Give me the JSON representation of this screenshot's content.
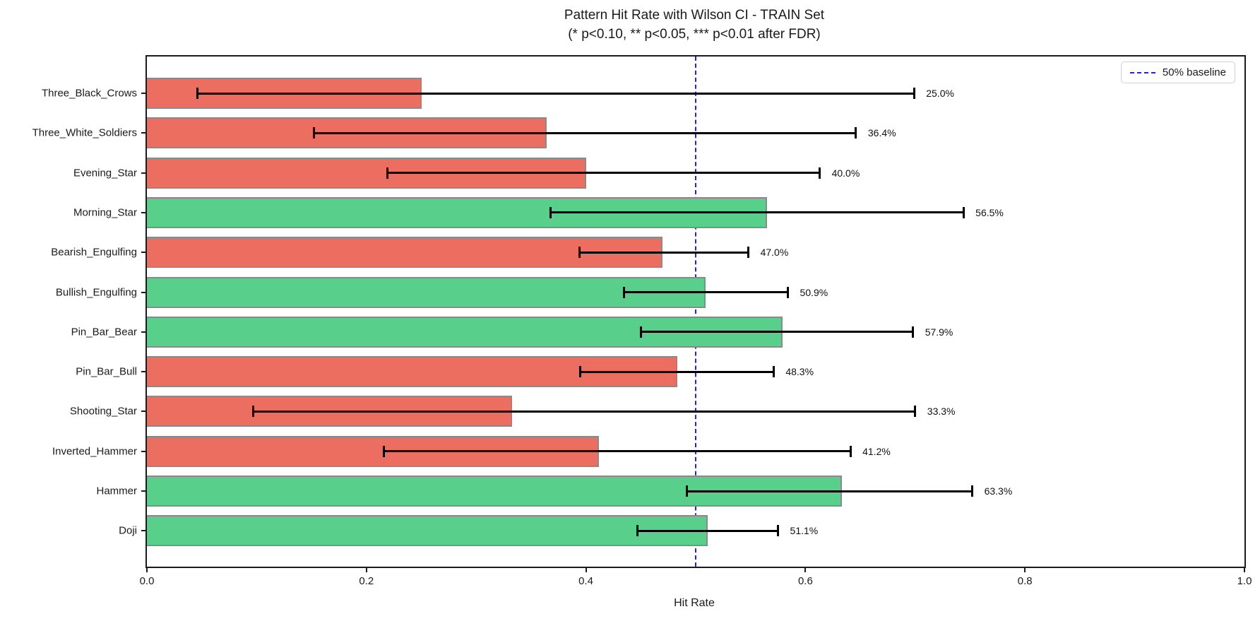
{
  "title": "Pattern Hit Rate with Wilson CI - TRAIN Set",
  "subtitle": "(* p<0.10, ** p<0.05, *** p<0.01 after FDR)",
  "xlabel": "Hit Rate",
  "legend": {
    "baseline_label": "50% baseline"
  },
  "colors": {
    "positive_bar": "#58d08b",
    "negative_bar": "#ec6e61",
    "bar_edge": "#8a8a8a",
    "error_bar": "#000000",
    "baseline_line": "#2323dd",
    "spine": "#1b1b1b"
  },
  "chart_data": {
    "type": "bar",
    "orientation": "horizontal",
    "title": "Pattern Hit Rate with Wilson CI - TRAIN Set",
    "subtitle": "(* p<0.10, ** p<0.05, *** p<0.01 after FDR)",
    "xlabel": "Hit Rate",
    "ylabel": "",
    "xlim": [
      0.0,
      1.0
    ],
    "x_tick_labels": [
      "0.0",
      "0.2",
      "0.4",
      "0.6",
      "0.8",
      "1.0"
    ],
    "grid": false,
    "legend_position": "upper right",
    "baseline_value": 0.5,
    "categories": [
      "Three_Black_Crows",
      "Three_White_Soldiers",
      "Evening_Star",
      "Morning_Star",
      "Bearish_Engulfing",
      "Bullish_Engulfing",
      "Pin_Bar_Bear",
      "Pin_Bar_Bull",
      "Shooting_Star",
      "Inverted_Hammer",
      "Hammer",
      "Doji"
    ],
    "values": [
      0.25,
      0.364,
      0.4,
      0.565,
      0.47,
      0.509,
      0.579,
      0.483,
      0.333,
      0.412,
      0.633,
      0.511
    ],
    "value_labels": [
      "25.0%",
      "36.4%",
      "40.0%",
      "56.5%",
      "47.0%",
      "50.9%",
      "57.9%",
      "48.3%",
      "33.3%",
      "41.2%",
      "63.3%",
      "51.1%"
    ],
    "ci_low": [
      0.046,
      0.152,
      0.219,
      0.368,
      0.394,
      0.435,
      0.45,
      0.395,
      0.097,
      0.216,
      0.492,
      0.447
    ],
    "ci_high": [
      0.699,
      0.646,
      0.613,
      0.744,
      0.548,
      0.584,
      0.698,
      0.571,
      0.7,
      0.641,
      0.752,
      0.575
    ],
    "bar_color_keys": [
      "negative_bar",
      "negative_bar",
      "negative_bar",
      "positive_bar",
      "negative_bar",
      "positive_bar",
      "positive_bar",
      "negative_bar",
      "negative_bar",
      "negative_bar",
      "positive_bar",
      "positive_bar"
    ]
  }
}
